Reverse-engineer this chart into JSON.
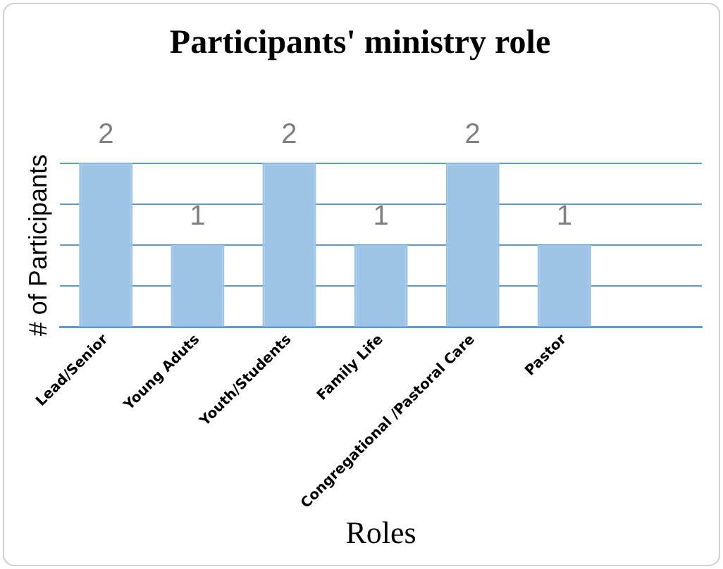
{
  "chart_data": {
    "type": "bar",
    "title": "Participants' ministry role",
    "xlabel": "Roles",
    "ylabel": "# of Participants",
    "categories": [
      "Lead/Senior",
      "Young Aduts",
      "Youth/Students",
      "Family Life",
      "Congregational /Pastoral Care",
      "Pastor",
      null
    ],
    "values": [
      2,
      1,
      2,
      1,
      2,
      1,
      null
    ],
    "color": "#9dc3e6",
    "ylim": [
      0,
      2
    ],
    "yticks": [
      {
        "value": 0,
        "label": null
      },
      {
        "value": 0.5,
        "label": null
      },
      {
        "value": 1,
        "label": null
      },
      {
        "value": 1.5,
        "label": null
      },
      {
        "value": 2,
        "label": null
      }
    ],
    "grid": "y",
    "tick_labels": "x",
    "data_labels": true,
    "legend": false
  }
}
